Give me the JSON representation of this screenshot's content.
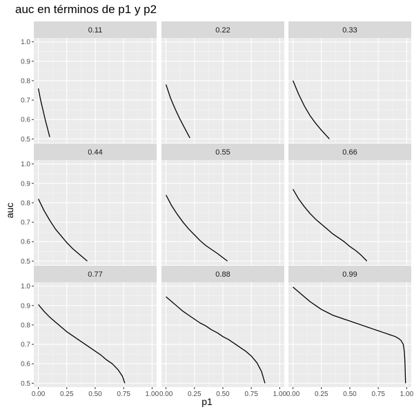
{
  "chart_data": {
    "type": "line",
    "title": "auc en términos de p1 y p2",
    "xlabel": "p1",
    "ylabel": "auc",
    "xlim": [
      -0.04,
      1.04
    ],
    "ylim": [
      0.48,
      1.02
    ],
    "x_ticks": [
      "0.00",
      "0.25",
      "0.50",
      "0.75",
      "1.00"
    ],
    "y_ticks": [
      "0.5",
      "0.6",
      "0.7",
      "0.8",
      "0.9",
      "1.0"
    ],
    "grid": true,
    "facets": [
      {
        "label": "0.11",
        "points": [
          [
            0.0,
            0.76
          ],
          [
            0.02,
            0.7
          ],
          [
            0.04,
            0.65
          ],
          [
            0.06,
            0.6
          ],
          [
            0.08,
            0.555
          ],
          [
            0.1,
            0.51
          ]
        ]
      },
      {
        "label": "0.22",
        "points": [
          [
            0.0,
            0.78
          ],
          [
            0.04,
            0.71
          ],
          [
            0.08,
            0.655
          ],
          [
            0.12,
            0.605
          ],
          [
            0.16,
            0.56
          ],
          [
            0.21,
            0.505
          ]
        ]
      },
      {
        "label": "0.33",
        "points": [
          [
            0.0,
            0.8
          ],
          [
            0.05,
            0.73
          ],
          [
            0.1,
            0.67
          ],
          [
            0.15,
            0.62
          ],
          [
            0.2,
            0.58
          ],
          [
            0.25,
            0.545
          ],
          [
            0.32,
            0.5
          ]
        ]
      },
      {
        "label": "0.44",
        "points": [
          [
            0.0,
            0.82
          ],
          [
            0.05,
            0.76
          ],
          [
            0.1,
            0.71
          ],
          [
            0.15,
            0.665
          ],
          [
            0.2,
            0.63
          ],
          [
            0.25,
            0.595
          ],
          [
            0.3,
            0.565
          ],
          [
            0.35,
            0.54
          ],
          [
            0.43,
            0.5
          ]
        ]
      },
      {
        "label": "0.55",
        "points": [
          [
            0.0,
            0.84
          ],
          [
            0.05,
            0.785
          ],
          [
            0.1,
            0.74
          ],
          [
            0.15,
            0.7
          ],
          [
            0.2,
            0.665
          ],
          [
            0.25,
            0.635
          ],
          [
            0.3,
            0.605
          ],
          [
            0.35,
            0.58
          ],
          [
            0.4,
            0.56
          ],
          [
            0.45,
            0.54
          ],
          [
            0.54,
            0.5
          ]
        ]
      },
      {
        "label": "0.66",
        "points": [
          [
            0.0,
            0.87
          ],
          [
            0.05,
            0.82
          ],
          [
            0.1,
            0.78
          ],
          [
            0.15,
            0.745
          ],
          [
            0.2,
            0.715
          ],
          [
            0.25,
            0.69
          ],
          [
            0.3,
            0.665
          ],
          [
            0.35,
            0.64
          ],
          [
            0.4,
            0.62
          ],
          [
            0.45,
            0.6
          ],
          [
            0.5,
            0.575
          ],
          [
            0.55,
            0.555
          ],
          [
            0.6,
            0.53
          ],
          [
            0.65,
            0.5
          ]
        ]
      },
      {
        "label": "0.77",
        "points": [
          [
            0.0,
            0.905
          ],
          [
            0.05,
            0.87
          ],
          [
            0.1,
            0.84
          ],
          [
            0.15,
            0.815
          ],
          [
            0.2,
            0.79
          ],
          [
            0.25,
            0.765
          ],
          [
            0.3,
            0.745
          ],
          [
            0.35,
            0.725
          ],
          [
            0.4,
            0.705
          ],
          [
            0.45,
            0.685
          ],
          [
            0.5,
            0.665
          ],
          [
            0.55,
            0.645
          ],
          [
            0.6,
            0.62
          ],
          [
            0.65,
            0.6
          ],
          [
            0.7,
            0.57
          ],
          [
            0.74,
            0.535
          ],
          [
            0.76,
            0.5
          ]
        ]
      },
      {
        "label": "0.88",
        "points": [
          [
            0.0,
            0.945
          ],
          [
            0.05,
            0.92
          ],
          [
            0.1,
            0.895
          ],
          [
            0.15,
            0.87
          ],
          [
            0.2,
            0.85
          ],
          [
            0.25,
            0.83
          ],
          [
            0.3,
            0.81
          ],
          [
            0.35,
            0.795
          ],
          [
            0.4,
            0.775
          ],
          [
            0.45,
            0.76
          ],
          [
            0.5,
            0.74
          ],
          [
            0.55,
            0.725
          ],
          [
            0.6,
            0.705
          ],
          [
            0.65,
            0.685
          ],
          [
            0.7,
            0.665
          ],
          [
            0.75,
            0.64
          ],
          [
            0.8,
            0.605
          ],
          [
            0.84,
            0.56
          ],
          [
            0.87,
            0.5
          ]
        ]
      },
      {
        "label": "0.99",
        "points": [
          [
            0.0,
            0.995
          ],
          [
            0.05,
            0.97
          ],
          [
            0.1,
            0.945
          ],
          [
            0.15,
            0.92
          ],
          [
            0.2,
            0.9
          ],
          [
            0.25,
            0.88
          ],
          [
            0.3,
            0.865
          ],
          [
            0.35,
            0.85
          ],
          [
            0.4,
            0.84
          ],
          [
            0.45,
            0.83
          ],
          [
            0.5,
            0.82
          ],
          [
            0.55,
            0.81
          ],
          [
            0.6,
            0.8
          ],
          [
            0.65,
            0.79
          ],
          [
            0.7,
            0.78
          ],
          [
            0.75,
            0.77
          ],
          [
            0.8,
            0.76
          ],
          [
            0.85,
            0.75
          ],
          [
            0.9,
            0.74
          ],
          [
            0.93,
            0.73
          ],
          [
            0.95,
            0.72
          ],
          [
            0.97,
            0.7
          ],
          [
            0.98,
            0.66
          ],
          [
            0.985,
            0.6
          ],
          [
            0.99,
            0.5
          ]
        ]
      }
    ],
    "colors": {
      "panel": "#ebebeb",
      "strip": "#d9d9d9",
      "grid_major": "#ffffff",
      "grid_minor": "#f5f5f5",
      "line": "#000000",
      "tick_text": "#4d4d4d",
      "strip_text": "#1a1a1a"
    }
  }
}
